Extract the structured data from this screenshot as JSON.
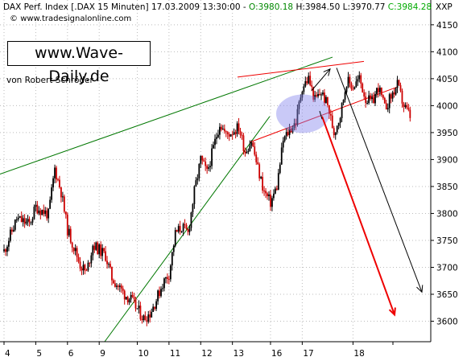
{
  "header": {
    "instrument": "DAX Perf. Index [.DAX",
    "interval": "15 Minuten]",
    "datetime": "17.03.2009 13:30:00",
    "sep1": "-",
    "open": "O:3980.18",
    "high": "H:3984.50",
    "low": "L:3970.77",
    "close": "C:3984.28",
    "symbol": "XXP"
  },
  "source_text": "www.tradesignalonline.com",
  "brand": "www.Wave-Daily.de",
  "author": "von Robert Schröder",
  "colors": {
    "up_candle": "#000000",
    "down_candle": "#cc0000",
    "trend_lines": "#007700",
    "channel_lines": "#ee0000",
    "highlight_ellipse": "#8888ee",
    "forecast_red": "#ee0000",
    "forecast_black": "#000000"
  },
  "chart_data": {
    "type": "candlestick",
    "x_ticks": [
      "4",
      "5",
      "6",
      "9",
      "10",
      "11",
      "12",
      "13",
      "16",
      "17",
      "18"
    ],
    "y_ticks": [
      3600,
      3650,
      3700,
      3750,
      3800,
      3850,
      3900,
      3950,
      4000,
      4050,
      4100,
      4150
    ],
    "ylim": [
      3562,
      4196
    ],
    "price_path": [
      [
        0,
        3730
      ],
      [
        2,
        3790
      ],
      [
        4,
        3780
      ],
      [
        5,
        3812
      ],
      [
        7,
        3798
      ],
      [
        8,
        3883
      ],
      [
        9,
        3840
      ],
      [
        10,
        3770
      ],
      [
        12,
        3705
      ],
      [
        13,
        3690
      ],
      [
        14,
        3742
      ],
      [
        16,
        3722
      ],
      [
        17,
        3680
      ],
      [
        19,
        3650
      ],
      [
        20,
        3640
      ],
      [
        22,
        3605
      ],
      [
        23,
        3615
      ],
      [
        24,
        3640
      ],
      [
        25,
        3670
      ],
      [
        26,
        3688
      ],
      [
        27,
        3762
      ],
      [
        28,
        3775
      ],
      [
        29,
        3763
      ],
      [
        30,
        3840
      ],
      [
        31,
        3900
      ],
      [
        32,
        3875
      ],
      [
        34,
        3968
      ],
      [
        35,
        3945
      ],
      [
        37,
        3960
      ],
      [
        38,
        3915
      ],
      [
        39,
        3935
      ],
      [
        40,
        3883
      ],
      [
        41,
        3840
      ],
      [
        42,
        3820
      ],
      [
        43,
        3850
      ],
      [
        44,
        3935
      ],
      [
        45,
        3955
      ],
      [
        46,
        3970
      ],
      [
        47,
        4035
      ],
      [
        48,
        4050
      ],
      [
        49,
        4010
      ],
      [
        50,
        4025
      ],
      [
        51,
        4000
      ],
      [
        52,
        3950
      ],
      [
        53,
        3983
      ],
      [
        54,
        4046
      ],
      [
        55,
        4035
      ],
      [
        56,
        4050
      ],
      [
        57,
        4013
      ],
      [
        58,
        4005
      ],
      [
        59,
        4035
      ],
      [
        60,
        3995
      ],
      [
        62,
        4038
      ],
      [
        63,
        4000
      ],
      [
        64,
        3980
      ]
    ]
  },
  "annotations": {
    "forecast_black": [
      [
        64,
        4068
      ],
      [
        68,
        3650
      ]
    ],
    "forecast_red": [
      [
        64,
        3985
      ],
      [
        68,
        3612
      ]
    ]
  }
}
